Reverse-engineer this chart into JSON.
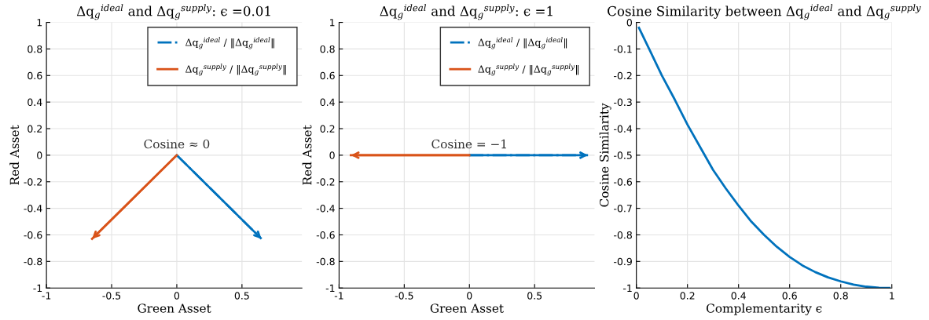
{
  "chart_data": [
    {
      "type": "line",
      "title": "Δq$_{g}$$^{ideal}$ and Δq$_{g}$$^{supply}$: ϵ =0.01",
      "xlabel": "Green Asset",
      "ylabel": "Red Asset",
      "xlim": [
        -1,
        0.96
      ],
      "ylim": [
        -1,
        1
      ],
      "xticks": [
        -1,
        -0.5,
        0,
        0.5
      ],
      "yticks": [
        -1,
        -0.8,
        -0.6,
        -0.4,
        -0.2,
        0,
        0.2,
        0.4,
        0.6,
        0.8,
        1
      ],
      "grid": true,
      "legend": "top right",
      "marker": "none",
      "series": [
        {
          "name": "Δq$_{g}$$^{ideal}$ / ‖Δq$_{g}$$^{ideal}$‖",
          "color": "#0072bd",
          "line_style": "dashdot",
          "x": [
            0,
            0.65
          ],
          "values": [
            0,
            -0.63
          ]
        },
        {
          "name": "Δq$_{g}$$^{supply}$ / ‖Δq$_{g}$$^{supply}$‖",
          "color": "#d95319",
          "line_style": "solid",
          "x": [
            0,
            -0.65
          ],
          "values": [
            0,
            -0.63
          ]
        }
      ],
      "annotations": [
        {
          "text": "Cosine ≈ 0",
          "x": 0,
          "y": 0
        }
      ]
    },
    {
      "type": "line",
      "title": "Δq$_{g}$$^{ideal}$ and Δq$_{g}$$^{supply}$: ϵ =1",
      "xlabel": "Green Asset",
      "ylabel": "Red Asset",
      "xlim": [
        -1,
        0.96
      ],
      "ylim": [
        -1,
        1
      ],
      "xticks": [
        -1,
        -0.5,
        0,
        0.5
      ],
      "yticks": [
        -1,
        -0.8,
        -0.6,
        -0.4,
        -0.2,
        0,
        0.2,
        0.4,
        0.6,
        0.8,
        1
      ],
      "grid": true,
      "legend": "top right",
      "marker": "none",
      "series": [
        {
          "name": "Δq$_{g}$$^{ideal}$ / ‖Δq$_{g}$$^{ideal}$‖",
          "color": "#0072bd",
          "line_style": "dashdot",
          "x": [
            0,
            0.91
          ],
          "values": [
            0,
            0
          ]
        },
        {
          "name": "Δq$_{g}$$^{supply}$ / ‖Δq$_{g}$$^{supply}$‖",
          "color": "#d95319",
          "line_style": "solid",
          "x": [
            0,
            -0.91
          ],
          "values": [
            0,
            0
          ]
        }
      ],
      "annotations": [
        {
          "text": "Cosine = −1",
          "x": 0,
          "y": 0
        }
      ]
    },
    {
      "type": "line",
      "title": "Cosine Similarity between Δq$_{g}$$^{ideal}$ and Δq$_{g}$$^{supply}$",
      "xlabel": "Complementarity ϵ",
      "ylabel": "Cosine Similarity",
      "xlim": [
        0,
        1
      ],
      "ylim": [
        -1,
        0
      ],
      "xticks": [
        0,
        0.2,
        0.4,
        0.6,
        0.8,
        1
      ],
      "yticks": [
        -1,
        -0.9,
        -0.8,
        -0.7,
        -0.6,
        -0.5,
        -0.4,
        -0.3,
        -0.2,
        -0.1,
        0
      ],
      "grid": true,
      "marker": "none",
      "series": [
        {
          "color": "#0072bd",
          "line_style": "solid",
          "x": [
            0.01,
            0.05,
            0.1,
            0.15,
            0.2,
            0.25,
            0.3,
            0.35,
            0.4,
            0.45,
            0.5,
            0.55,
            0.6,
            0.65,
            0.7,
            0.75,
            0.8,
            0.85,
            0.9,
            0.95,
            0.99
          ],
          "values": [
            -0.02,
            -0.1,
            -0.2,
            -0.29,
            -0.385,
            -0.47,
            -0.555,
            -0.625,
            -0.69,
            -0.75,
            -0.8,
            -0.845,
            -0.883,
            -0.915,
            -0.94,
            -0.96,
            -0.975,
            -0.987,
            -0.995,
            -0.999,
            -1
          ]
        }
      ]
    }
  ]
}
